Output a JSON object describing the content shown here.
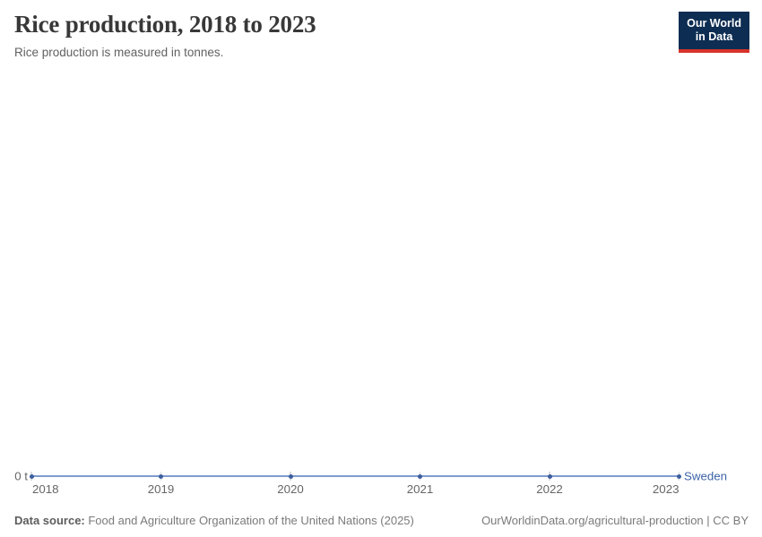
{
  "header": {
    "title": "Rice production, 2018 to 2023",
    "subtitle": "Rice production is measured in tonnes.",
    "logo": {
      "line1": "Our World",
      "line2": "in Data"
    }
  },
  "chart_data": {
    "type": "line",
    "title": "Rice production, 2018 to 2023",
    "x": [
      2018,
      2019,
      2020,
      2021,
      2022,
      2023
    ],
    "series": [
      {
        "name": "Sweden",
        "values": [
          0,
          0,
          0,
          0,
          0,
          0
        ]
      }
    ],
    "unit": "t",
    "y_axis_zero_label": "0 t",
    "ylim": [
      0,
      0
    ],
    "grid": false,
    "legend_position": "end-of-line",
    "colors": {
      "line": "#7f9bce",
      "marker": "#3e5f9e",
      "entity_label": "#3d63a8",
      "axis_text": "#666666",
      "tick": "#dcdcdc"
    }
  },
  "footer": {
    "source_label": "Data source:",
    "source_text": " Food and Agriculture Organization of the United Nations (2025)",
    "credit_text": "OurWorldinData.org/agricultural-production | CC BY"
  },
  "brand_colors": {
    "logo_background": "#0d2d52",
    "logo_accent": "#d7342a"
  }
}
